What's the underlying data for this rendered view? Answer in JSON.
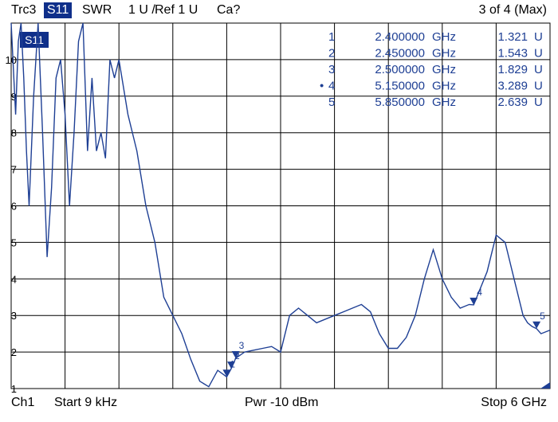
{
  "header": {
    "trace_id": "Trc3",
    "measurement": "S11",
    "format": "SWR",
    "scale": "1 U /",
    "reference": "Ref 1 U",
    "calibration": "Ca?",
    "trace_count": "3 of 4 (Max)"
  },
  "footer": {
    "channel": "Ch1",
    "start": "Start  9 kHz",
    "power": "Pwr  -10 dBm",
    "stop": "Stop  6 GHz"
  },
  "trace_tag": "S11",
  "y_ticks": [
    "10",
    "9",
    "8",
    "7",
    "6",
    "5",
    "4",
    "3",
    "2",
    "1"
  ],
  "markers": [
    {
      "num": "1",
      "freq": "2.400000",
      "unit": "GHz",
      "value": "1.321",
      "vunit": "U",
      "active": false
    },
    {
      "num": "2",
      "freq": "2.450000",
      "unit": "GHz",
      "value": "1.543",
      "vunit": "U",
      "active": false
    },
    {
      "num": "3",
      "freq": "2.500000",
      "unit": "GHz",
      "value": "1.829",
      "vunit": "U",
      "active": false
    },
    {
      "num": "4",
      "freq": "5.150000",
      "unit": "GHz",
      "value": "3.289",
      "vunit": "U",
      "active": true
    },
    {
      "num": "5",
      "freq": "5.850000",
      "unit": "GHz",
      "value": "2.639",
      "vunit": "U",
      "active": false
    }
  ],
  "colors": {
    "trace": "#1e3f94",
    "grid": "#000000",
    "marker": "#1e3f94",
    "tag_bg": "#0f2f8a"
  },
  "chart_data": {
    "type": "line",
    "xlabel": "",
    "ylabel": "",
    "xlim": [
      9e-06,
      6
    ],
    "ylim": [
      1,
      11
    ],
    "x_unit": "GHz",
    "y_unit": "U",
    "series": [
      {
        "x": [
          0.0,
          0.05,
          0.08,
          0.11,
          0.14,
          0.17,
          0.2,
          0.25,
          0.3,
          0.35,
          0.4,
          0.45,
          0.5,
          0.55,
          0.6,
          0.65,
          0.7,
          0.75,
          0.8,
          0.85,
          0.9,
          0.95,
          1.0,
          1.05,
          1.1,
          1.15,
          1.2,
          1.3,
          1.4,
          1.5,
          1.6,
          1.7,
          1.8,
          1.9,
          2.0,
          2.1,
          2.2,
          2.3,
          2.4,
          2.45,
          2.5,
          2.6,
          2.7,
          2.8,
          2.9,
          3.0,
          3.1,
          3.2,
          3.3,
          3.4,
          3.5,
          3.6,
          3.7,
          3.8,
          3.9,
          4.0,
          4.1,
          4.2,
          4.3,
          4.4,
          4.5,
          4.6,
          4.7,
          4.8,
          4.9,
          5.0,
          5.1,
          5.15,
          5.2,
          5.3,
          5.4,
          5.5,
          5.6,
          5.7,
          5.75,
          5.8,
          5.85,
          5.9,
          6.0
        ],
        "y": [
          11,
          8.5,
          10.5,
          11,
          9.5,
          7.5,
          6,
          9,
          11,
          8,
          4.6,
          6.5,
          9.5,
          10,
          8.5,
          6,
          8,
          10.5,
          11,
          7.5,
          9.5,
          7.5,
          8,
          7.3,
          10,
          9.5,
          10,
          8.5,
          7.5,
          6,
          5,
          3.5,
          3,
          2.5,
          1.8,
          1.2,
          1.05,
          1.5,
          1.321,
          1.543,
          1.829,
          2.0,
          2.05,
          2.1,
          2.15,
          2.0,
          3.0,
          3.2,
          3.0,
          2.8,
          2.9,
          3.0,
          3.1,
          3.2,
          3.3,
          3.1,
          2.5,
          2.1,
          2.1,
          2.4,
          3.0,
          4.0,
          4.8,
          4.0,
          3.5,
          3.2,
          3.3,
          3.289,
          3.6,
          4.2,
          5.2,
          5.0,
          4.0,
          3.0,
          2.8,
          2.7,
          2.639,
          2.5,
          2.6
        ]
      }
    ]
  }
}
